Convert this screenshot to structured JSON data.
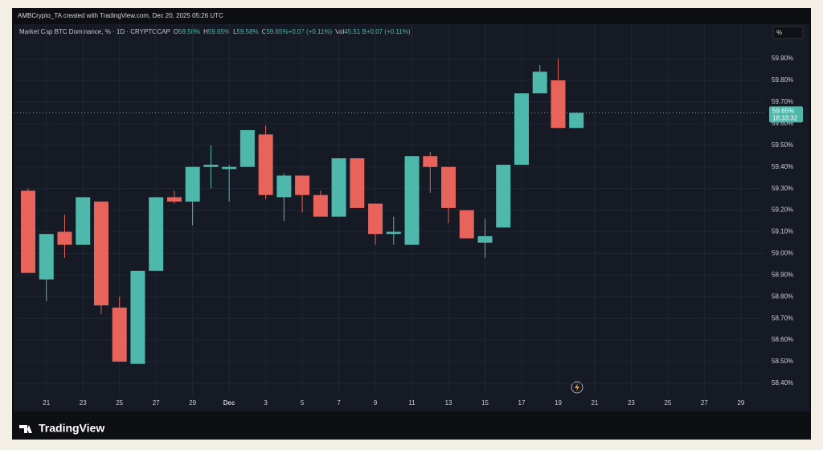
{
  "header": {
    "attribution": "AMBCrypto_TA created with TradingView.com, Dec 20, 2025 05:26 UTC"
  },
  "footer": {
    "brand": "TradingView"
  },
  "chart_data": {
    "type": "candlestick",
    "symbol": "Market Cap BTC Dominance, % · 1D · CRYPTOCAP",
    "ohlc_legend": [
      {
        "key": "O",
        "value": "59.58%"
      },
      {
        "key": "H",
        "value": "59.65%"
      },
      {
        "key": "L",
        "value": "59.58%"
      },
      {
        "key": "C",
        "value": "59.65%"
      },
      {
        "key": "",
        "value": "+0.07 (+0.11%)"
      },
      {
        "key": "Vol",
        "value": "45.51 B"
      },
      {
        "key": "",
        "value": "+0.07 (+0.11%)"
      }
    ],
    "scale_button": "%",
    "categories": [
      null,
      "21",
      null,
      "23",
      null,
      "25",
      null,
      "27",
      null,
      "29",
      null,
      "Dec",
      null,
      "3",
      null,
      "5",
      null,
      "7",
      null,
      "9",
      null,
      "11",
      null,
      "13",
      null,
      "15",
      null,
      "17",
      null,
      "19",
      null,
      "21",
      null,
      "23",
      null,
      "25",
      null,
      "27",
      null,
      "29"
    ],
    "open": [
      59.29,
      58.88,
      59.1,
      59.04,
      59.24,
      58.75,
      58.49,
      58.92,
      59.26,
      59.24,
      59.4,
      59.39,
      59.4,
      59.55,
      59.26,
      59.36,
      59.27,
      59.17,
      59.44,
      59.23,
      59.09,
      59.04,
      59.45,
      59.4,
      59.2,
      59.05,
      59.12,
      59.41,
      59.74,
      59.8,
      59.58,
      null,
      null,
      null,
      null,
      null,
      null,
      null,
      null,
      null
    ],
    "high": [
      59.3,
      59.09,
      59.18,
      59.26,
      59.24,
      58.8,
      58.92,
      59.26,
      59.29,
      59.4,
      59.5,
      59.41,
      59.57,
      59.59,
      59.37,
      59.36,
      59.29,
      59.44,
      59.44,
      59.23,
      59.17,
      59.45,
      59.47,
      59.4,
      59.2,
      59.16,
      59.41,
      59.74,
      59.87,
      59.9,
      59.65,
      null,
      null,
      null,
      null,
      null,
      null,
      null,
      null,
      null
    ],
    "low": [
      58.91,
      58.78,
      58.98,
      59.04,
      58.72,
      58.5,
      58.49,
      58.92,
      59.23,
      59.13,
      59.3,
      59.24,
      59.4,
      59.25,
      59.15,
      59.19,
      59.17,
      59.17,
      59.21,
      59.04,
      59.04,
      59.04,
      59.28,
      59.14,
      59.07,
      58.98,
      59.12,
      59.41,
      59.74,
      59.58,
      59.58,
      null,
      null,
      null,
      null,
      null,
      null,
      null,
      null,
      null
    ],
    "close": [
      58.91,
      59.09,
      59.04,
      59.26,
      58.76,
      58.5,
      58.92,
      59.26,
      59.24,
      59.4,
      59.41,
      59.4,
      59.57,
      59.27,
      59.36,
      59.27,
      59.17,
      59.44,
      59.21,
      59.09,
      59.1,
      59.45,
      59.4,
      59.21,
      59.07,
      59.08,
      59.41,
      59.74,
      59.84,
      59.58,
      59.65,
      null,
      null,
      null,
      null,
      null,
      null,
      null,
      null,
      null
    ],
    "colors": {
      "up": "#4fb8ac",
      "down": "#e8635c"
    },
    "ylim": [
      58.27,
      60.06
    ],
    "yticks": [
      {
        "value": 58.4,
        "label": "58.40%"
      },
      {
        "value": 58.5,
        "label": "58.50%"
      },
      {
        "value": 58.6,
        "label": "58.60%"
      },
      {
        "value": 58.7,
        "label": "58.70%"
      },
      {
        "value": 58.8,
        "label": "58.80%"
      },
      {
        "value": 58.9,
        "label": "58.90%"
      },
      {
        "value": 59.0,
        "label": "59.00%"
      },
      {
        "value": 59.1,
        "label": "59.10%"
      },
      {
        "value": 59.2,
        "label": "59.20%"
      },
      {
        "value": 59.3,
        "label": "59.30%"
      },
      {
        "value": 59.4,
        "label": "59.40%"
      },
      {
        "value": 59.5,
        "label": "59.50%"
      },
      {
        "value": 59.6,
        "label": "59.60%"
      },
      {
        "value": 59.7,
        "label": "59.70%"
      },
      {
        "value": 59.8,
        "label": "59.80%"
      },
      {
        "value": 59.9,
        "label": "59.90%"
      }
    ],
    "price_tag": {
      "value": 59.65,
      "label": "59.65%",
      "countdown": "18:33:32"
    },
    "grid": true
  }
}
